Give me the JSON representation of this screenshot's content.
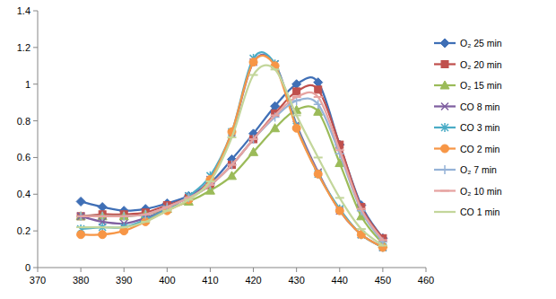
{
  "chart_data": {
    "type": "line",
    "line_style": "smooth",
    "grid": false,
    "legend": "right",
    "x": [
      380,
      385,
      390,
      395,
      400,
      405,
      410,
      415,
      420,
      425,
      430,
      435,
      440,
      445,
      450
    ],
    "xlim": [
      370,
      460
    ],
    "xticks": [
      370,
      380,
      390,
      400,
      410,
      420,
      430,
      440,
      450,
      460
    ],
    "ylim": [
      0,
      1.4
    ],
    "yticks": [
      0,
      0.2,
      0.4,
      0.6,
      0.8,
      1,
      1.2,
      1.4
    ],
    "series": [
      {
        "name": "O₂ 25 min",
        "color": "#3f6fb6",
        "marker": "diamond",
        "values": [
          0.36,
          0.33,
          0.31,
          0.32,
          0.35,
          0.39,
          0.46,
          0.59,
          0.73,
          0.88,
          1.0,
          1.01,
          0.67,
          0.34,
          0.16
        ]
      },
      {
        "name": "O₂ 20 min",
        "color": "#c0504d",
        "marker": "square",
        "values": [
          0.28,
          0.29,
          0.29,
          0.3,
          0.34,
          0.38,
          0.45,
          0.56,
          0.7,
          0.84,
          0.96,
          0.97,
          0.67,
          0.33,
          0.16
        ]
      },
      {
        "name": "O₂ 15 min",
        "color": "#9bbb59",
        "marker": "triangle",
        "values": [
          0.28,
          0.28,
          0.28,
          0.29,
          0.32,
          0.36,
          0.42,
          0.5,
          0.63,
          0.76,
          0.86,
          0.85,
          0.57,
          0.28,
          0.13
        ]
      },
      {
        "name": "CO 8 min",
        "color": "#7f5fa0",
        "marker": "x",
        "values": [
          0.28,
          0.25,
          0.24,
          0.27,
          0.32,
          0.39,
          0.48,
          0.73,
          1.12,
          1.11,
          0.78,
          0.52,
          0.31,
          0.18,
          0.11
        ]
      },
      {
        "name": "CO 3 min",
        "color": "#4bacc6",
        "marker": "star",
        "values": [
          0.21,
          0.22,
          0.22,
          0.26,
          0.32,
          0.39,
          0.5,
          0.74,
          1.14,
          1.11,
          0.77,
          0.51,
          0.32,
          0.18,
          0.11
        ]
      },
      {
        "name": "CO 2 min",
        "color": "#f79646",
        "marker": "circle",
        "values": [
          0.18,
          0.18,
          0.2,
          0.25,
          0.31,
          0.37,
          0.48,
          0.74,
          1.12,
          1.1,
          0.76,
          0.51,
          0.31,
          0.18,
          0.11
        ]
      },
      {
        "name": "O₂ 7 min",
        "color": "#95b3d7",
        "marker": "plus",
        "values": [
          0.28,
          0.28,
          0.28,
          0.29,
          0.33,
          0.38,
          0.45,
          0.56,
          0.7,
          0.82,
          0.91,
          0.89,
          0.62,
          0.31,
          0.14
        ]
      },
      {
        "name": "O₂ 10 min",
        "color": "#e6a3a1",
        "marker": "dash",
        "values": [
          0.28,
          0.28,
          0.28,
          0.29,
          0.33,
          0.38,
          0.45,
          0.56,
          0.7,
          0.83,
          0.93,
          0.93,
          0.64,
          0.32,
          0.15
        ]
      },
      {
        "name": "CO 1 min",
        "color": "#c3d69b",
        "marker": "dash",
        "values": [
          0.22,
          0.22,
          0.22,
          0.25,
          0.31,
          0.37,
          0.47,
          0.71,
          1.05,
          1.08,
          0.83,
          0.6,
          0.38,
          0.21,
          0.12
        ]
      }
    ]
  }
}
